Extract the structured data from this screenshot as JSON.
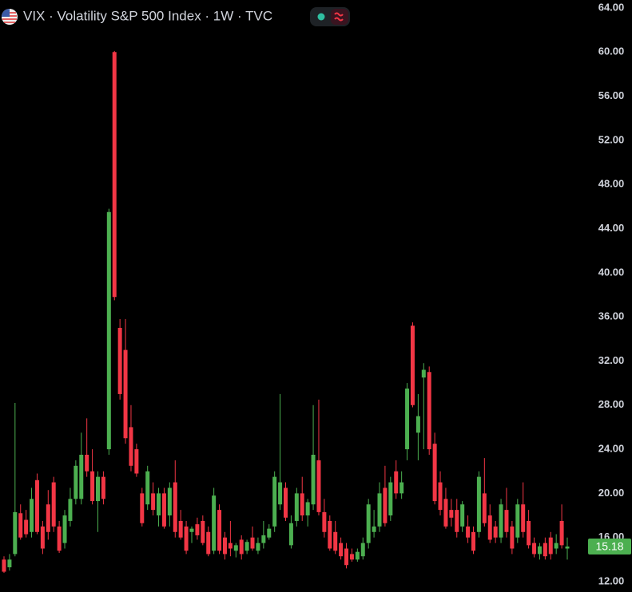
{
  "chart_data": {
    "type": "candlestick",
    "title": "VIX · Volatility S&P 500 Index · 1W · TVC",
    "up_color": "#4caf50",
    "down_color": "#f23645",
    "ylim": [
      11.06,
      64.72
    ],
    "yticks": [
      {
        "value": 12,
        "label": "12.00"
      },
      {
        "value": 16,
        "label": "16.00"
      },
      {
        "value": 20,
        "label": "20.00"
      },
      {
        "value": 24,
        "label": "24.00"
      },
      {
        "value": 28,
        "label": "28.00"
      },
      {
        "value": 32,
        "label": "32.00"
      },
      {
        "value": 36,
        "label": "36.00"
      },
      {
        "value": 40,
        "label": "40.00"
      },
      {
        "value": 44,
        "label": "44.00"
      },
      {
        "value": 48,
        "label": "48.00"
      },
      {
        "value": 52,
        "label": "52.00"
      },
      {
        "value": 56,
        "label": "56.00"
      },
      {
        "value": 60,
        "label": "60.00"
      },
      {
        "value": 64,
        "label": "64.00"
      }
    ],
    "open": [
      14,
      13.3,
      14.5,
      18.2,
      17.6,
      16.5,
      21.2,
      17,
      19,
      21,
      17,
      15.5,
      17.5,
      19.5,
      19.5,
      23.5,
      22,
      19.3,
      21.5,
      24,
      60,
      35,
      33,
      26,
      24,
      20,
      19,
      20,
      18,
      20,
      18,
      21,
      17.5,
      17,
      16.5,
      17.2,
      17.5,
      16.5,
      14.8,
      18.5,
      16,
      15.5,
      14.8,
      15.8,
      14.8,
      16,
      14.8,
      15.5,
      16,
      17,
      19,
      20.5,
      15.3,
      17.5,
      20,
      18,
      19,
      23,
      18.3,
      17.5,
      16.5,
      15.5,
      15,
      14.5,
      14,
      14.3,
      15.5,
      16.5,
      17,
      20.5,
      18,
      22,
      20,
      24,
      35.2,
      25.5,
      30.5,
      31,
      24.5,
      21,
      19.5,
      18.5,
      18.5,
      17,
      17,
      16.5,
      16.5,
      20,
      18,
      17,
      16,
      18.5,
      17,
      16,
      19,
      17.5,
      15.5,
      14.5,
      15.5,
      16,
      15,
      17.5,
      15
    ],
    "high": [
      14.3,
      14.5,
      28.2,
      19,
      18.5,
      20.5,
      21.8,
      17.5,
      20.3,
      21.5,
      17.5,
      18.5,
      20.5,
      23,
      25.5,
      26.8,
      24,
      22,
      22,
      45.8,
      60.1,
      35.8,
      35.8,
      28,
      24.5,
      20.5,
      22.5,
      21,
      20.5,
      20.5,
      21,
      23,
      18.5,
      17.5,
      17,
      17.8,
      18,
      17,
      20.5,
      19,
      16.5,
      17.5,
      15.5,
      16.2,
      15.8,
      17,
      16,
      17.5,
      17.2,
      22,
      29,
      21,
      18,
      20.5,
      21.5,
      19.5,
      28,
      28.5,
      19.5,
      18,
      17.5,
      16,
      15.5,
      15,
      15,
      16,
      19.5,
      18.5,
      21,
      22.5,
      21.5,
      23,
      22,
      30,
      35.5,
      29,
      31.8,
      31.5,
      25.5,
      22,
      20.5,
      19.5,
      19.5,
      19.3,
      18,
      17,
      22,
      23.2,
      19,
      17.5,
      19.5,
      20.5,
      17.5,
      19.5,
      21,
      18.5,
      16,
      15.5,
      16,
      16.5,
      16.3,
      19,
      16
    ],
    "low": [
      12.8,
      13,
      14.3,
      15.8,
      16,
      16,
      16.3,
      14.5,
      15.8,
      16.5,
      14.6,
      15,
      17,
      19,
      19,
      21.5,
      19,
      16.5,
      19,
      23.5,
      37.5,
      28.5,
      24.5,
      22,
      21.5,
      17,
      18.5,
      18,
      17,
      16.8,
      17,
      16,
      15.8,
      14.5,
      15.5,
      15.8,
      15.3,
      14.3,
      14.5,
      14.5,
      14,
      14.3,
      14.2,
      14,
      14.5,
      14.8,
      14.5,
      15,
      15.8,
      16.5,
      18.5,
      17.5,
      15,
      17,
      17.5,
      17,
      18.5,
      18,
      16,
      14.8,
      14.5,
      14,
      13.2,
      13.8,
      13.8,
      14,
      15,
      16,
      16.5,
      17,
      17.5,
      19.5,
      19.5,
      23,
      27.8,
      23,
      24,
      23.5,
      19,
      18,
      16.8,
      17,
      16,
      16.5,
      15.5,
      14.5,
      16,
      17,
      15.5,
      15.5,
      15.5,
      16,
      14.5,
      15.5,
      16,
      15,
      14.2,
      14,
      14,
      14,
      14.5,
      15,
      14
    ],
    "close": [
      12.9,
      14,
      18.3,
      16,
      16.3,
      19.5,
      16.5,
      15,
      16.5,
      17,
      14.8,
      18,
      19.5,
      22.5,
      23.5,
      22,
      19.3,
      21.5,
      19.5,
      45.5,
      37.8,
      29,
      25,
      22.5,
      21.8,
      17.3,
      22,
      18.5,
      20,
      17,
      20.5,
      16.5,
      16,
      14.8,
      16.8,
      16.2,
      15.5,
      14.5,
      19.8,
      14.8,
      14.5,
      15,
      15.3,
      14.5,
      15.6,
      15,
      15.5,
      16.2,
      16.8,
      21.5,
      21,
      17.8,
      17.3,
      20,
      18,
      19.2,
      23.5,
      18.3,
      16.5,
      15,
      14.8,
      14.3,
      13.5,
      14,
      14.7,
      15.5,
      19,
      17,
      20,
      17.3,
      21,
      20,
      21,
      29.5,
      28,
      27,
      31.2,
      24,
      19.3,
      18.5,
      17,
      17.8,
      16.5,
      19,
      16,
      14.8,
      21.5,
      17.3,
      15.8,
      16,
      19,
      16.5,
      15,
      19,
      16.5,
      15.3,
      14.5,
      15.2,
      14.3,
      14.5,
      15.5,
      15.3,
      15.18
    ]
  }
}
